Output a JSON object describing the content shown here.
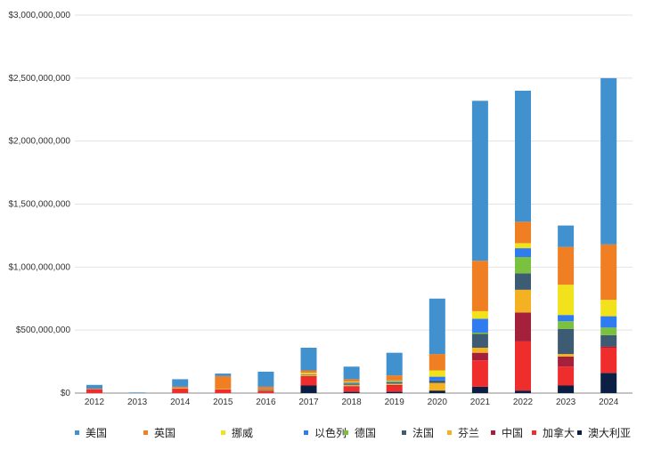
{
  "chart_data": {
    "type": "bar",
    "stacked": true,
    "title": "",
    "xlabel": "",
    "ylabel": "",
    "ylim": [
      0,
      3000000000
    ],
    "yticks": [
      0,
      500000000,
      1000000000,
      1500000000,
      2000000000,
      2500000000,
      3000000000
    ],
    "ytick_labels": [
      "$0",
      "$500,000,000",
      "$1,000,000,000",
      "$1,500,000,000",
      "$2,000,000,000",
      "$2,500,000,000",
      "$3,000,000,000"
    ],
    "grid": true,
    "legend_position": "bottom",
    "categories": [
      "2012",
      "2013",
      "2014",
      "2015",
      "2016",
      "2017",
      "2018",
      "2019",
      "2020",
      "2021",
      "2022",
      "2023",
      "2024"
    ],
    "series": [
      {
        "name": "澳大利亚",
        "color": "#0b1f45",
        "values": [
          0,
          0,
          0,
          0,
          0,
          60000000,
          10000000,
          10000000,
          20000000,
          50000000,
          20000000,
          60000000,
          160000000
        ]
      },
      {
        "name": "加拿大",
        "color": "#ef2d2d",
        "values": [
          30000000,
          0,
          35000000,
          30000000,
          15000000,
          70000000,
          40000000,
          50000000,
          0,
          210000000,
          390000000,
          150000000,
          200000000
        ]
      },
      {
        "name": "中国",
        "color": "#a5213b",
        "values": [
          0,
          0,
          0,
          0,
          5000000,
          5000000,
          5000000,
          5000000,
          0,
          60000000,
          230000000,
          80000000,
          10000000
        ]
      },
      {
        "name": "芬兰",
        "color": "#f4b223",
        "values": [
          0,
          0,
          5000000,
          5000000,
          5000000,
          10000000,
          10000000,
          10000000,
          60000000,
          40000000,
          180000000,
          20000000,
          0
        ]
      },
      {
        "name": "法国",
        "color": "#3d5c73",
        "values": [
          0,
          0,
          0,
          0,
          5000000,
          5000000,
          10000000,
          10000000,
          20000000,
          110000000,
          130000000,
          200000000,
          90000000
        ]
      },
      {
        "name": "德国",
        "color": "#7ac13f",
        "values": [
          0,
          0,
          0,
          0,
          0,
          0,
          5000000,
          5000000,
          0,
          10000000,
          130000000,
          60000000,
          60000000
        ]
      },
      {
        "name": "以色列",
        "color": "#2f7cf0",
        "values": [
          0,
          0,
          0,
          0,
          0,
          0,
          5000000,
          5000000,
          30000000,
          110000000,
          70000000,
          50000000,
          90000000
        ]
      },
      {
        "name": "挪威",
        "color": "#f1e21c",
        "values": [
          0,
          0,
          0,
          0,
          0,
          10000000,
          5000000,
          5000000,
          50000000,
          60000000,
          40000000,
          240000000,
          130000000
        ]
      },
      {
        "name": "英国",
        "color": "#ef7f22",
        "values": [
          5000000,
          0,
          10000000,
          100000000,
          20000000,
          20000000,
          20000000,
          40000000,
          130000000,
          400000000,
          170000000,
          300000000,
          440000000
        ]
      },
      {
        "name": "美国",
        "color": "#4191cf",
        "values": [
          30000000,
          5000000,
          60000000,
          20000000,
          120000000,
          180000000,
          100000000,
          180000000,
          440000000,
          1270000000,
          1040000000,
          170000000,
          1320000000
        ]
      }
    ],
    "legend_order": [
      "美国",
      "英国",
      "挪威",
      "以色列",
      "德国",
      "法国",
      "芬兰",
      "中国",
      "加拿大",
      "澳大利亚"
    ]
  }
}
